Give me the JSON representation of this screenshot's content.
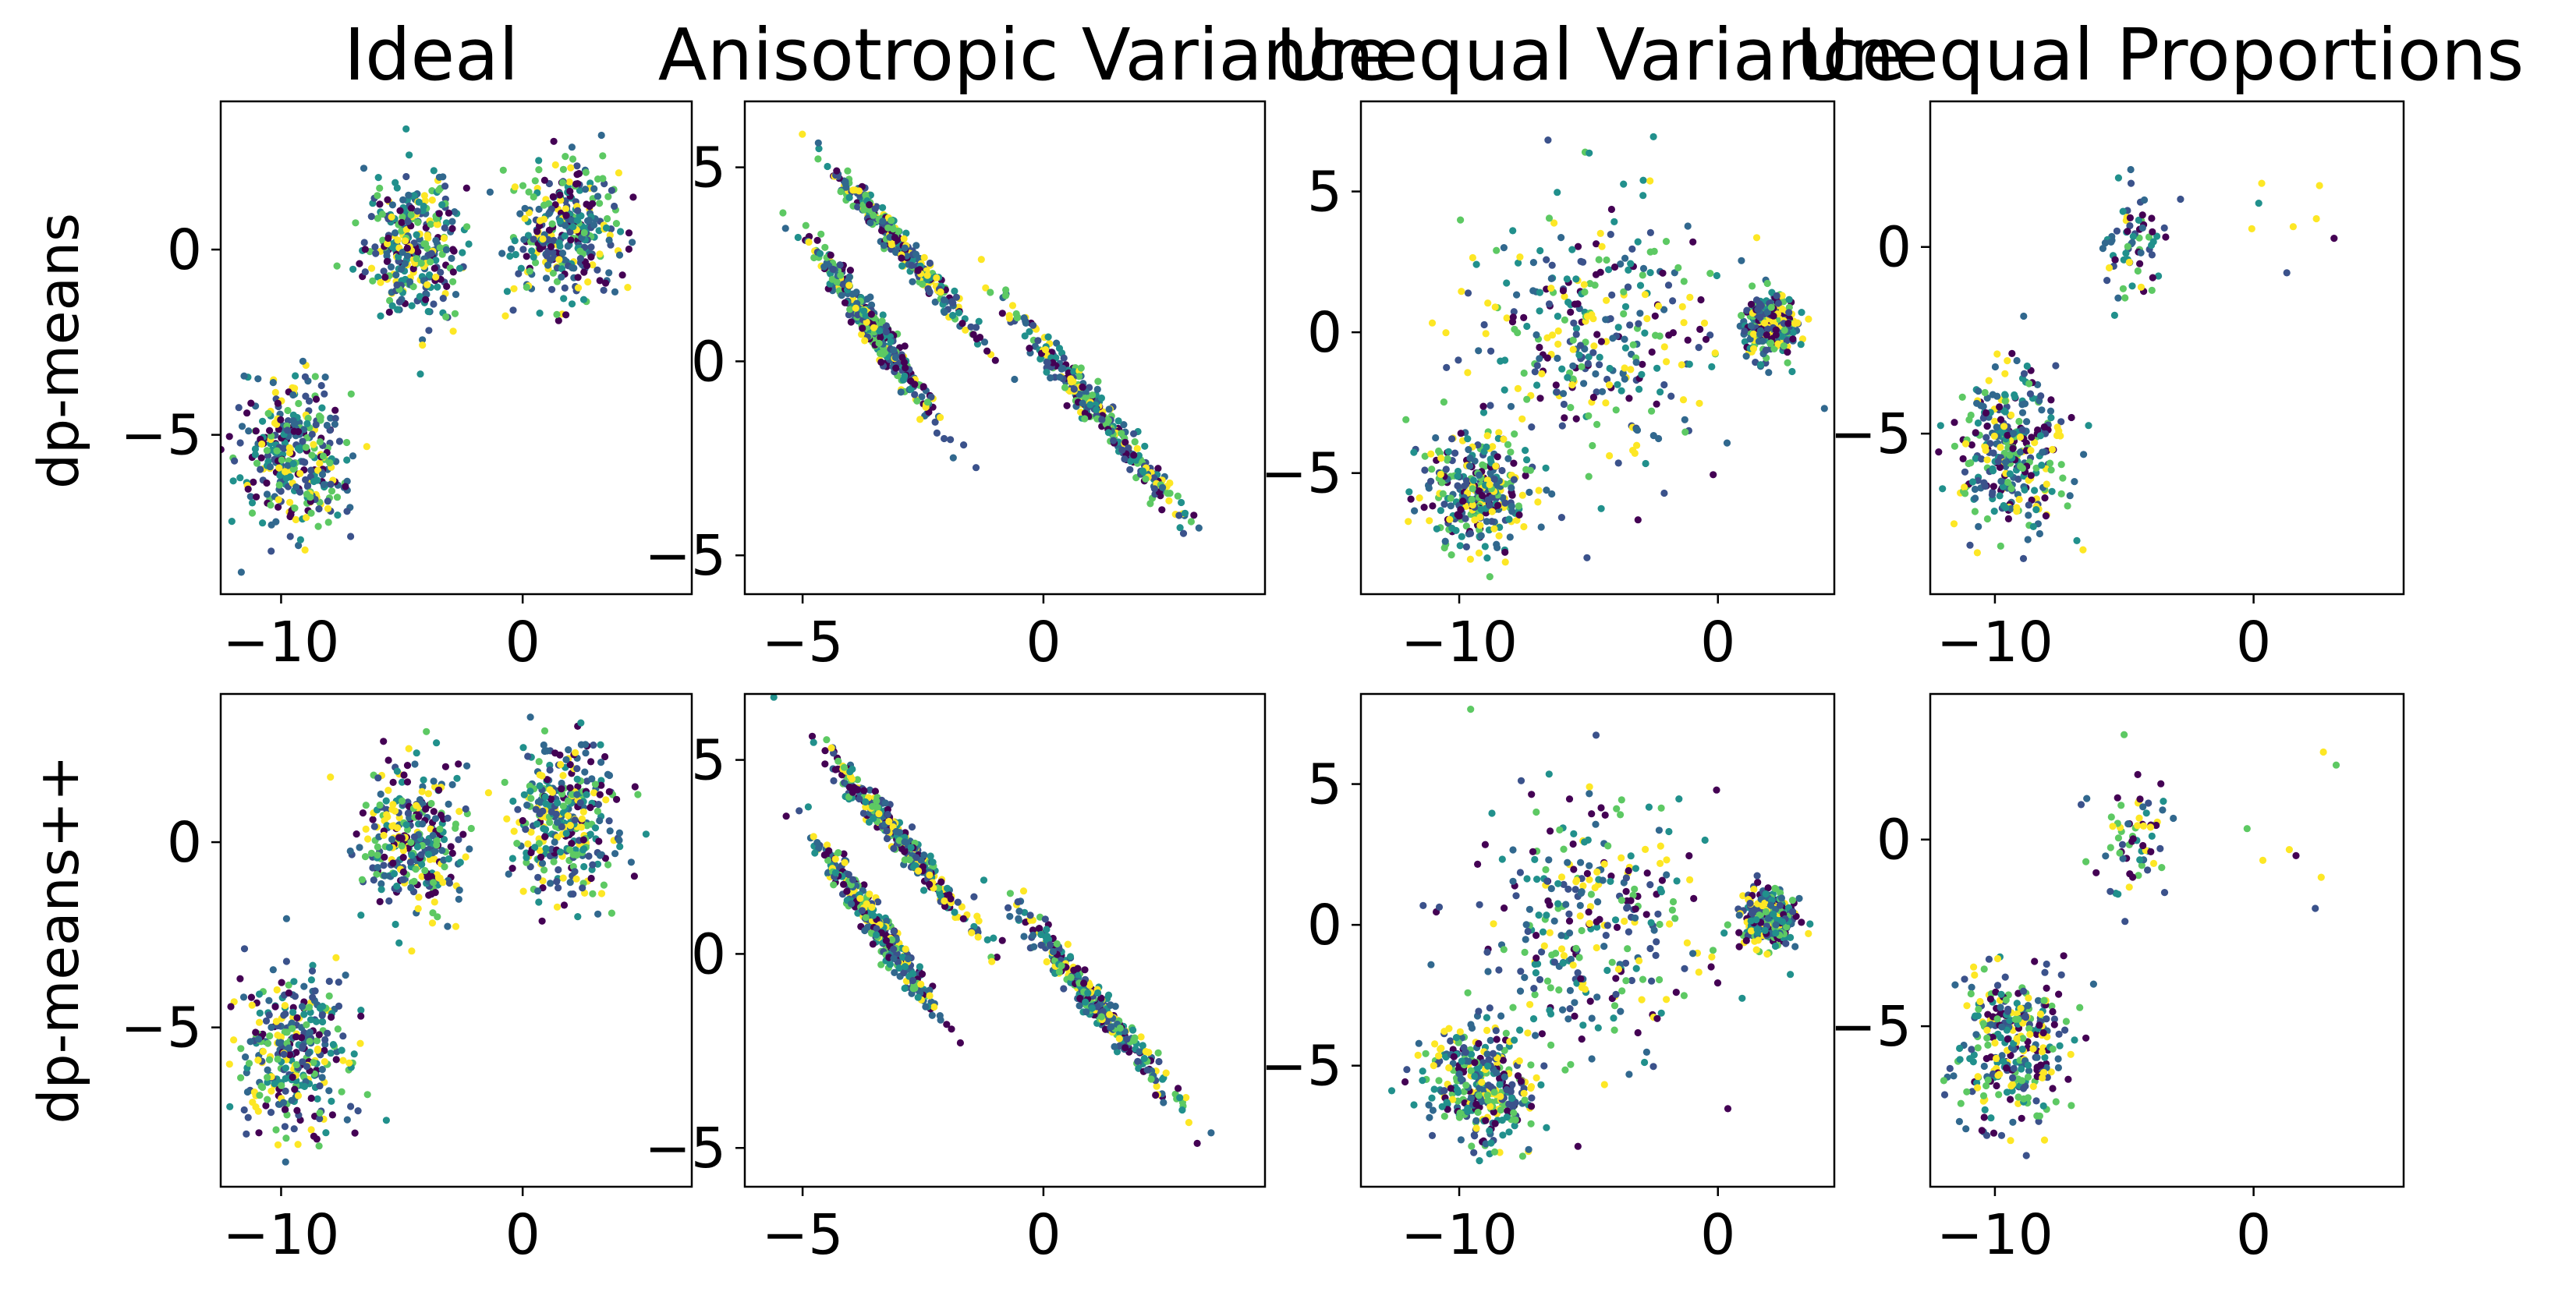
{
  "figure": {
    "columns": [
      "Ideal",
      "Anisotropic Variance",
      "Unequal Variance",
      "Unequal Proportions"
    ],
    "rows": [
      "dp-means",
      "dp-means++"
    ]
  },
  "palette": [
    "#440154",
    "#3b528b",
    "#21908c",
    "#5dc963",
    "#fde725",
    "#31688e"
  ],
  "chart_data": [
    {
      "type": "scatter",
      "title": "Ideal",
      "row": "dp-means",
      "col": 0,
      "xlim": [
        -12.5,
        7.0
      ],
      "ylim": [
        -9.3,
        4.0
      ],
      "xticks": [
        -10,
        0
      ],
      "yticks": [
        -5,
        0
      ],
      "grid": false,
      "legend": "none",
      "clusters": [
        {
          "cx": -9.5,
          "cy": -5.7,
          "sx": 1.1,
          "sy": 1.05,
          "n": 330,
          "rho": 0
        },
        {
          "cx": -4.5,
          "cy": 0.0,
          "sx": 1.0,
          "sy": 1.0,
          "n": 330,
          "rho": 0
        },
        {
          "cx": 1.8,
          "cy": 0.5,
          "sx": 1.05,
          "sy": 1.0,
          "n": 330,
          "rho": 0
        }
      ]
    },
    {
      "type": "scatter",
      "title": "Anisotropic Variance",
      "row": "dp-means",
      "col": 1,
      "xlim": [
        -6.2,
        4.6
      ],
      "ylim": [
        -6.0,
        6.7
      ],
      "xticks": [
        -5,
        0
      ],
      "yticks": [
        -5,
        0,
        5
      ],
      "grid": false,
      "legend": "none",
      "clusters": [
        {
          "cx": -3.0,
          "cy": 3.0,
          "sx": 0.75,
          "sy": 1.1,
          "n": 330,
          "rho": -0.98
        },
        {
          "cx": -3.5,
          "cy": 0.8,
          "sx": 0.65,
          "sy": 1.15,
          "n": 330,
          "rho": -0.97
        },
        {
          "cx": 1.1,
          "cy": -1.3,
          "sx": 0.85,
          "sy": 1.25,
          "n": 330,
          "rho": -0.98
        }
      ]
    },
    {
      "type": "scatter",
      "title": "Unequal Variance",
      "row": "dp-means",
      "col": 2,
      "xlim": [
        -13.8,
        4.5
      ],
      "ylim": [
        -9.3,
        8.2
      ],
      "xticks": [
        -10,
        0
      ],
      "yticks": [
        -5,
        0,
        5
      ],
      "grid": false,
      "legend": "none",
      "clusters": [
        {
          "cx": -9.3,
          "cy": -5.7,
          "sx": 1.1,
          "sy": 1.05,
          "n": 330,
          "rho": 0
        },
        {
          "cx": -4.8,
          "cy": -0.2,
          "sx": 2.4,
          "sy": 2.4,
          "n": 330,
          "rho": 0
        },
        {
          "cx": 2.0,
          "cy": 0.3,
          "sx": 0.5,
          "sy": 0.5,
          "n": 330,
          "rho": 0
        }
      ]
    },
    {
      "type": "scatter",
      "title": "Unequal Proportions",
      "row": "dp-means",
      "col": 3,
      "xlim": [
        -12.5,
        5.8
      ],
      "ylim": [
        -9.3,
        3.9
      ],
      "xticks": [
        -10,
        0
      ],
      "yticks": [
        -5,
        0
      ],
      "grid": false,
      "legend": "none",
      "clusters": [
        {
          "cx": -9.3,
          "cy": -5.6,
          "sx": 1.1,
          "sy": 1.05,
          "n": 330,
          "rho": 0
        },
        {
          "cx": -4.6,
          "cy": 0.0,
          "sx": 0.7,
          "sy": 0.9,
          "n": 70,
          "rho": 0
        },
        {
          "cx": 2.0,
          "cy": 0.0,
          "sx": 1.0,
          "sy": 1.0,
          "n": 8,
          "rho": 0
        }
      ]
    },
    {
      "type": "scatter",
      "title": "Ideal",
      "row": "dp-means++",
      "col": 0,
      "xlim": [
        -12.5,
        7.0
      ],
      "ylim": [
        -9.3,
        4.0
      ],
      "xticks": [
        -10,
        0
      ],
      "yticks": [
        -5,
        0
      ],
      "grid": false,
      "legend": "none",
      "clusters": [
        {
          "cx": -9.5,
          "cy": -5.7,
          "sx": 1.1,
          "sy": 1.05,
          "n": 330,
          "rho": 0
        },
        {
          "cx": -4.5,
          "cy": 0.0,
          "sx": 1.0,
          "sy": 1.0,
          "n": 330,
          "rho": 0
        },
        {
          "cx": 1.8,
          "cy": 0.5,
          "sx": 1.05,
          "sy": 1.0,
          "n": 330,
          "rho": 0
        }
      ]
    },
    {
      "type": "scatter",
      "title": "Anisotropic Variance",
      "row": "dp-means++",
      "col": 1,
      "xlim": [
        -6.2,
        4.6
      ],
      "ylim": [
        -6.0,
        6.7
      ],
      "xticks": [
        -5,
        0
      ],
      "yticks": [
        -5,
        0,
        5
      ],
      "grid": false,
      "legend": "none",
      "clusters": [
        {
          "cx": -3.0,
          "cy": 3.0,
          "sx": 0.75,
          "sy": 1.1,
          "n": 330,
          "rho": -0.98
        },
        {
          "cx": -3.5,
          "cy": 0.8,
          "sx": 0.65,
          "sy": 1.15,
          "n": 330,
          "rho": -0.97
        },
        {
          "cx": 1.1,
          "cy": -1.3,
          "sx": 0.85,
          "sy": 1.25,
          "n": 330,
          "rho": -0.98
        }
      ]
    },
    {
      "type": "scatter",
      "title": "Unequal Variance",
      "row": "dp-means++",
      "col": 2,
      "xlim": [
        -13.8,
        4.5
      ],
      "ylim": [
        -9.3,
        8.2
      ],
      "xticks": [
        -10,
        0
      ],
      "yticks": [
        -5,
        0,
        5
      ],
      "grid": false,
      "legend": "none",
      "clusters": [
        {
          "cx": -9.3,
          "cy": -5.7,
          "sx": 1.1,
          "sy": 1.05,
          "n": 330,
          "rho": 0
        },
        {
          "cx": -4.8,
          "cy": -0.2,
          "sx": 2.4,
          "sy": 2.4,
          "n": 330,
          "rho": 0
        },
        {
          "cx": 2.0,
          "cy": 0.3,
          "sx": 0.5,
          "sy": 0.5,
          "n": 330,
          "rho": 0
        }
      ]
    },
    {
      "type": "scatter",
      "title": "Unequal Proportions",
      "row": "dp-means++",
      "col": 3,
      "xlim": [
        -12.5,
        5.8
      ],
      "ylim": [
        -9.3,
        3.9
      ],
      "xticks": [
        -10,
        0
      ],
      "yticks": [
        -5,
        0
      ],
      "grid": false,
      "legend": "none",
      "clusters": [
        {
          "cx": -9.3,
          "cy": -5.6,
          "sx": 1.1,
          "sy": 1.05,
          "n": 330,
          "rho": 0
        },
        {
          "cx": -4.6,
          "cy": 0.0,
          "sx": 0.7,
          "sy": 0.9,
          "n": 70,
          "rho": 0
        },
        {
          "cx": 2.0,
          "cy": 0.0,
          "sx": 1.0,
          "sy": 1.0,
          "n": 8,
          "rho": 0
        }
      ]
    }
  ]
}
